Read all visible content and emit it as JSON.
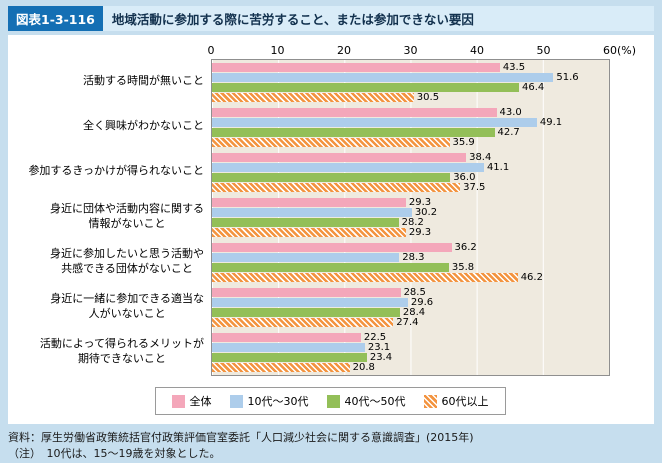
{
  "header": {
    "figure_number": "図表1-3-116",
    "title": "地域活動に参加する際に苦労すること、または参加できない要因"
  },
  "chart_data": {
    "type": "bar",
    "orientation": "horizontal",
    "title": "地域活動に参加する際に苦労すること、または参加できない要因",
    "categories": [
      "活動する時間が無いこと",
      "全く興味がわかないこと",
      "参加するきっかけが得られないこと",
      "身近に団体や活動内容に関する\n情報がないこと",
      "身近に参加したいと思う活動や\n共感できる団体がないこと",
      "身近に一緒に参加できる適当な\n人がいないこと",
      "活動によって得られるメリットが\n期待できないこと"
    ],
    "series": [
      {
        "name": "全体",
        "color": "#f4a7ba",
        "pattern": "solid",
        "values": [
          43.5,
          43.0,
          38.4,
          29.3,
          36.2,
          28.5,
          22.5
        ]
      },
      {
        "name": "10代～30代",
        "color": "#adcdeb",
        "pattern": "solid",
        "values": [
          51.6,
          49.1,
          41.1,
          30.2,
          28.3,
          29.6,
          23.1
        ]
      },
      {
        "name": "40代～50代",
        "color": "#93bf58",
        "pattern": "solid",
        "values": [
          46.4,
          42.7,
          36.0,
          28.2,
          35.8,
          28.4,
          23.4
        ]
      },
      {
        "name": "60代以上",
        "color": "#f39440",
        "pattern": "diagonal-white-stripes",
        "values": [
          30.5,
          35.9,
          37.5,
          29.3,
          46.2,
          27.4,
          20.8
        ]
      }
    ],
    "xlim": [
      0,
      60
    ],
    "x_ticks": [
      0,
      10,
      20,
      30,
      40,
      50,
      60
    ],
    "x_unit": "(%)",
    "value_labels": true,
    "grid": true,
    "plot_background": "#efeadf",
    "legend_position": "bottom"
  },
  "footer": {
    "source": "資料：厚生労働省政策統括官付政策評価官室委託「人口減少社会に関する意識調査」(2015年)",
    "note": "（注）　10代は、15～19歳を対象とした。"
  }
}
